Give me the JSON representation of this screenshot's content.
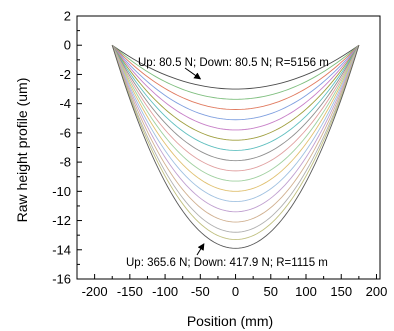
{
  "chart_data": {
    "type": "line",
    "title": "",
    "xlabel": "Position (mm)",
    "ylabel": "Raw height profile (um)",
    "xlim": [
      -225,
      205
    ],
    "ylim": [
      -16,
      2
    ],
    "x_ticks": [
      -200,
      -150,
      -100,
      -50,
      0,
      50,
      100,
      150,
      200
    ],
    "y_ticks": [
      2,
      0,
      -2,
      -4,
      -6,
      -8,
      -10,
      -12,
      -14,
      -16
    ],
    "grid": false,
    "legend": "none",
    "x_span": [
      -175,
      175
    ],
    "series": [
      {
        "color": "#4d4d4d",
        "values": {
          "x": [
            -175,
            0,
            175
          ],
          "y": [
            0,
            -3.0,
            0
          ]
        }
      },
      {
        "color": "#7fbf7f",
        "values": {
          "x": [
            -175,
            0,
            175
          ],
          "y": [
            0,
            -3.7,
            0
          ]
        }
      },
      {
        "color": "#e07a5f",
        "values": {
          "x": [
            -175,
            0,
            175
          ],
          "y": [
            0,
            -4.4,
            0
          ]
        }
      },
      {
        "color": "#7f9fdf",
        "values": {
          "x": [
            -175,
            0,
            175
          ],
          "y": [
            0,
            -5.1,
            0
          ]
        }
      },
      {
        "color": "#c77fc7",
        "values": {
          "x": [
            -175,
            0,
            175
          ],
          "y": [
            0,
            -5.8,
            0
          ]
        }
      },
      {
        "color": "#9f9f3f",
        "values": {
          "x": [
            -175,
            0,
            175
          ],
          "y": [
            0,
            -6.5,
            0
          ]
        }
      },
      {
        "color": "#5fbfbf",
        "values": {
          "x": [
            -175,
            0,
            175
          ],
          "y": [
            0,
            -7.2,
            0
          ]
        }
      },
      {
        "color": "#8f8f8f",
        "values": {
          "x": [
            -175,
            0,
            175
          ],
          "y": [
            0,
            -7.9,
            0
          ]
        }
      },
      {
        "color": "#e0a0a0",
        "values": {
          "x": [
            -175,
            0,
            175
          ],
          "y": [
            0,
            -8.6,
            0
          ]
        }
      },
      {
        "color": "#a0d0a0",
        "values": {
          "x": [
            -175,
            0,
            175
          ],
          "y": [
            0,
            -9.3,
            0
          ]
        }
      },
      {
        "color": "#e0c070",
        "values": {
          "x": [
            -175,
            0,
            175
          ],
          "y": [
            0,
            -10.0,
            0
          ]
        }
      },
      {
        "color": "#9fc0e0",
        "values": {
          "x": [
            -175,
            0,
            175
          ],
          "y": [
            0,
            -10.7,
            0
          ]
        }
      },
      {
        "color": "#c0a0d0",
        "values": {
          "x": [
            -175,
            0,
            175
          ],
          "y": [
            0,
            -11.4,
            0
          ]
        }
      },
      {
        "color": "#d0b090",
        "values": {
          "x": [
            -175,
            0,
            175
          ],
          "y": [
            0,
            -12.1,
            0
          ]
        }
      },
      {
        "color": "#b0b0b0",
        "values": {
          "x": [
            -175,
            0,
            175
          ],
          "y": [
            0,
            -12.8,
            0
          ]
        }
      },
      {
        "color": "#c0c080",
        "values": {
          "x": [
            -175,
            0,
            175
          ],
          "y": [
            0,
            -13.3,
            0
          ]
        }
      },
      {
        "color": "#5a5a5a",
        "values": {
          "x": [
            -175,
            0,
            175
          ],
          "y": [
            0,
            -13.9,
            0
          ]
        }
      }
    ],
    "annotations": [
      {
        "text": "Up: 80.5 N; Down: 80.5 N; R=5156 m",
        "arrow_to": {
          "x": -50,
          "y": -2.3
        }
      },
      {
        "text": "Up: 365.6 N; Down: 417.9 N; R=1115 m",
        "arrow_to": {
          "x": -45,
          "y": -13.6
        }
      }
    ]
  }
}
